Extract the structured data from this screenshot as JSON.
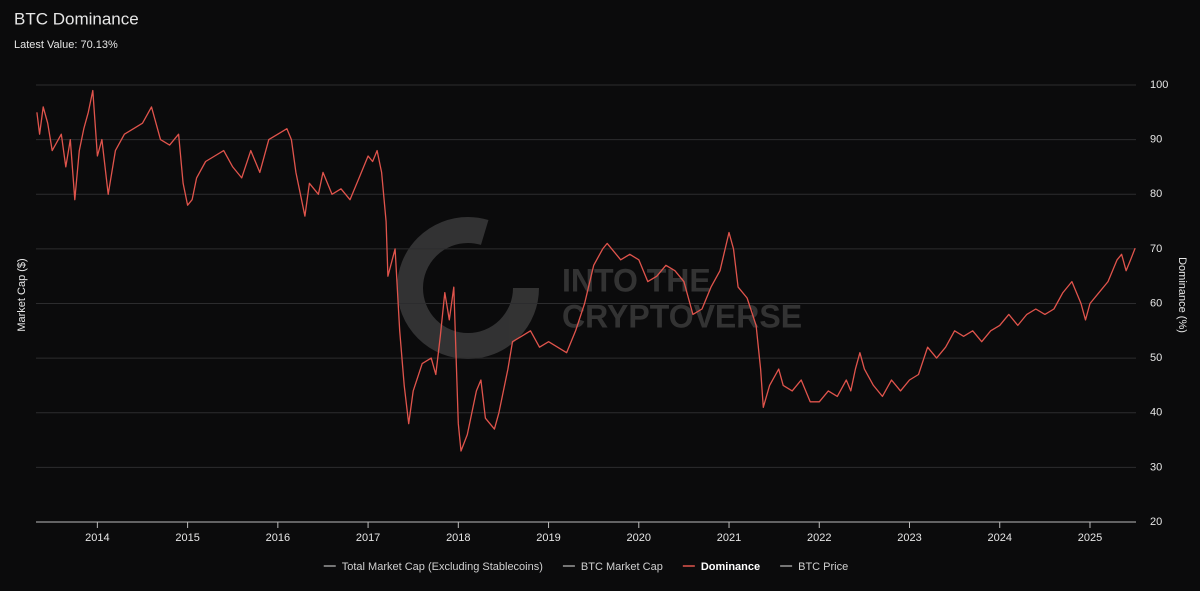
{
  "chart_data": {
    "type": "line",
    "title": "BTC Dominance",
    "subtitle": "Latest Value: 70.13%",
    "watermark": [
      "INTO THE",
      "CRYPTOVERSE"
    ],
    "y_label_left": "Market Cap ($)",
    "y_label_right": "Dominance (%)",
    "x": [
      2013.33,
      2013.36,
      2013.4,
      2013.45,
      2013.5,
      2013.6,
      2013.65,
      2013.7,
      2013.75,
      2013.8,
      2013.85,
      2013.9,
      2013.95,
      2014.0,
      2014.05,
      2014.12,
      2014.2,
      2014.3,
      2014.4,
      2014.5,
      2014.6,
      2014.7,
      2014.8,
      2014.9,
      2014.95,
      2015.0,
      2015.05,
      2015.1,
      2015.2,
      2015.3,
      2015.4,
      2015.5,
      2015.6,
      2015.7,
      2015.8,
      2015.9,
      2016.0,
      2016.1,
      2016.15,
      2016.2,
      2016.25,
      2016.3,
      2016.35,
      2016.45,
      2016.5,
      2016.6,
      2016.7,
      2016.8,
      2016.9,
      2017.0,
      2017.05,
      2017.1,
      2017.15,
      2017.2,
      2017.22,
      2017.3,
      2017.35,
      2017.4,
      2017.45,
      2017.5,
      2017.6,
      2017.7,
      2017.75,
      2017.8,
      2017.85,
      2017.9,
      2017.95,
      2018.0,
      2018.03,
      2018.1,
      2018.2,
      2018.25,
      2018.3,
      2018.4,
      2018.45,
      2018.55,
      2018.6,
      2018.7,
      2018.8,
      2018.9,
      2019.0,
      2019.1,
      2019.2,
      2019.3,
      2019.4,
      2019.5,
      2019.6,
      2019.65,
      2019.8,
      2019.9,
      2020.0,
      2020.1,
      2020.2,
      2020.3,
      2020.4,
      2020.5,
      2020.55,
      2020.6,
      2020.7,
      2020.8,
      2020.9,
      2021.0,
      2021.05,
      2021.1,
      2021.2,
      2021.3,
      2021.35,
      2021.38,
      2021.45,
      2021.55,
      2021.6,
      2021.7,
      2021.8,
      2021.9,
      2022.0,
      2022.1,
      2022.2,
      2022.3,
      2022.35,
      2022.4,
      2022.45,
      2022.5,
      2022.6,
      2022.7,
      2022.8,
      2022.9,
      2023.0,
      2023.1,
      2023.2,
      2023.3,
      2023.4,
      2023.5,
      2023.6,
      2023.7,
      2023.8,
      2023.9,
      2024.0,
      2024.1,
      2024.2,
      2024.3,
      2024.4,
      2024.5,
      2024.6,
      2024.7,
      2024.8,
      2024.9,
      2024.95,
      2025.0,
      2025.1,
      2025.2,
      2025.3,
      2025.35,
      2025.4,
      2025.45,
      2025.5
    ],
    "series": [
      {
        "name": "Total Market Cap (Excluding Stablecoins)",
        "color": "#9a9a9a"
      },
      {
        "name": "BTC Market Cap",
        "color": "#9a9a9a"
      },
      {
        "name": "Dominance",
        "color": "#e0544c",
        "axis": "y2",
        "values": [
          95,
          91,
          96,
          93,
          88,
          91,
          85,
          90,
          79,
          88,
          92,
          95,
          99,
          87,
          90,
          80,
          88,
          91,
          92,
          93,
          96,
          90,
          89,
          91,
          82,
          78,
          79,
          83,
          86,
          87,
          88,
          85,
          83,
          88,
          84,
          90,
          91,
          92,
          90,
          84,
          80,
          76,
          82,
          80,
          84,
          80,
          81,
          79,
          83,
          87,
          86,
          88,
          84,
          75,
          65,
          70,
          55,
          45,
          38,
          44,
          49,
          50,
          47,
          54,
          62,
          57,
          63,
          38,
          33,
          36,
          44,
          46,
          39,
          37,
          40,
          48,
          53,
          54,
          55,
          52,
          53,
          52,
          51,
          55,
          60,
          67,
          70,
          71,
          68,
          69,
          68,
          64,
          65,
          67,
          66,
          64,
          61,
          58,
          59,
          63,
          66,
          73,
          70,
          63,
          61,
          56,
          48,
          41,
          45,
          48,
          45,
          44,
          46,
          42,
          42,
          44,
          43,
          46,
          44,
          48,
          51,
          48,
          45,
          43,
          46,
          44,
          46,
          47,
          52,
          50,
          52,
          55,
          54,
          55,
          53,
          55,
          56,
          58,
          56,
          58,
          59,
          58,
          59,
          62,
          64,
          60,
          57,
          60,
          62,
          64,
          68,
          69,
          66,
          68,
          70.13
        ]
      },
      {
        "name": "BTC Price",
        "color": "#9a9a9a"
      }
    ],
    "xlim": [
      2013.32,
      2025.51
    ],
    "xticks": [
      2014,
      2015,
      2016,
      2017,
      2018,
      2019,
      2020,
      2021,
      2022,
      2023,
      2024,
      2025
    ],
    "y2lim": [
      20,
      100
    ],
    "y2ticks": [
      20,
      30,
      40,
      50,
      60,
      70,
      80,
      90,
      100
    ],
    "grid": true
  }
}
